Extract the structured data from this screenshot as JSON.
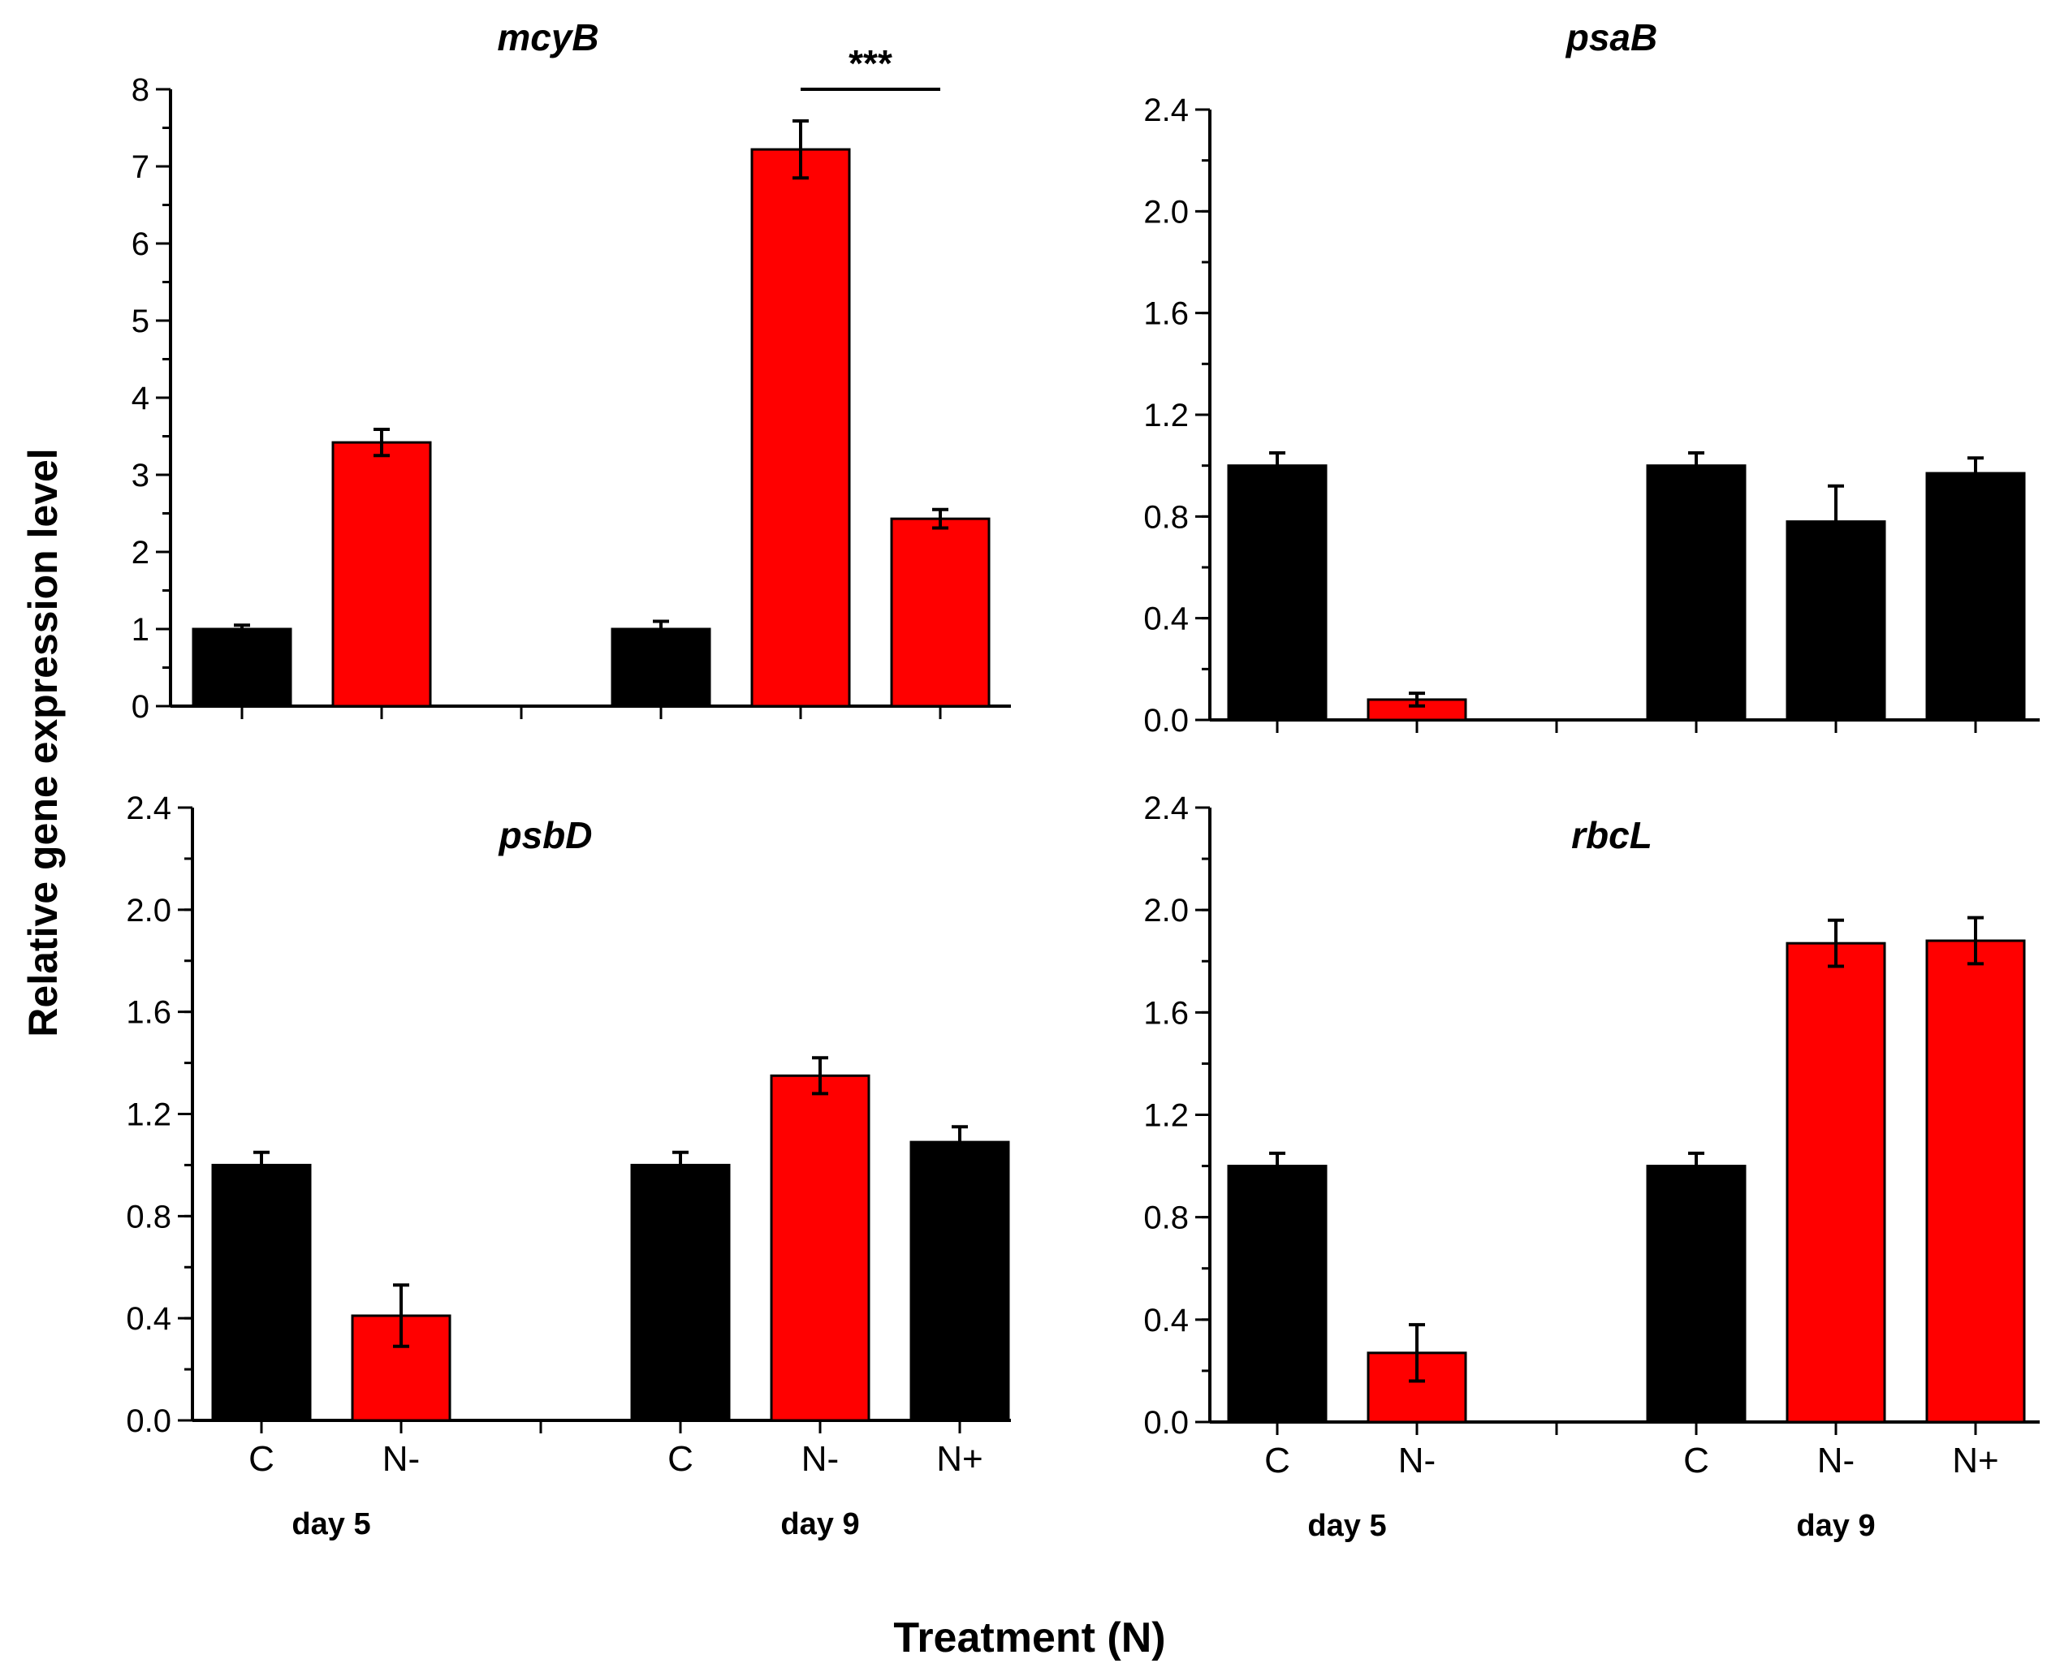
{
  "figure": {
    "ylabel": "Relative gene expression level",
    "xlabel": "Treatment (N)"
  },
  "colors": {
    "control": "#000000",
    "nitrogen": "#ff0000",
    "axis": "#000000"
  },
  "chart_data": [
    {
      "id": "mcyB",
      "type": "bar",
      "title": "mcyB",
      "ylim": [
        0,
        8
      ],
      "yticks": [
        "0",
        "1",
        "2",
        "3",
        "4",
        "5",
        "6",
        "7",
        "8"
      ],
      "yticks_num": [
        0,
        1,
        2,
        3,
        4,
        5,
        6,
        7,
        8
      ],
      "minor_step": 0.5,
      "categories": [
        "C",
        "N-",
        "",
        "C",
        "N-",
        "N+"
      ],
      "values": [
        1.0,
        3.42,
        null,
        1.0,
        7.22,
        2.43
      ],
      "errors": [
        0.05,
        0.17,
        null,
        0.1,
        0.37,
        0.12
      ],
      "bar_colors": [
        "#000000",
        "#ff0000",
        null,
        "#000000",
        "#ff0000",
        "#ff0000"
      ],
      "show_category_labels": false,
      "groups": [],
      "significance": {
        "label": "***",
        "from_index": 4,
        "to_index": 5,
        "y": 8.0
      }
    },
    {
      "id": "psaB",
      "type": "bar",
      "title": "psaB",
      "ylim": [
        0,
        2.4
      ],
      "yticks": [
        "0.0",
        "0.4",
        "0.8",
        "1.2",
        "1.6",
        "2.0",
        "2.4"
      ],
      "yticks_num": [
        0,
        0.4,
        0.8,
        1.2,
        1.6,
        2.0,
        2.4
      ],
      "minor_step": 0.2,
      "categories": [
        "C",
        "N-",
        "",
        "C",
        "N-",
        "N+"
      ],
      "values": [
        1.0,
        0.08,
        null,
        1.0,
        0.78,
        0.97
      ],
      "errors": [
        0.05,
        0.025,
        null,
        0.05,
        0.14,
        0.06
      ],
      "bar_colors": [
        "#000000",
        "#ff0000",
        null,
        "#000000",
        "#000000",
        "#000000"
      ],
      "show_category_labels": false,
      "groups": []
    },
    {
      "id": "psbD",
      "type": "bar",
      "title": "psbD",
      "ylim": [
        0,
        2.4
      ],
      "yticks": [
        "0.0",
        "0.4",
        "0.8",
        "1.2",
        "1.6",
        "2.0",
        "2.4"
      ],
      "yticks_num": [
        0,
        0.4,
        0.8,
        1.2,
        1.6,
        2.0,
        2.4
      ],
      "minor_step": 0.2,
      "categories": [
        "C",
        "N-",
        "",
        "C",
        "N-",
        "N+"
      ],
      "values": [
        1.0,
        0.41,
        null,
        1.0,
        1.35,
        1.09
      ],
      "errors": [
        0.05,
        0.12,
        null,
        0.05,
        0.07,
        0.06
      ],
      "bar_colors": [
        "#000000",
        "#ff0000",
        null,
        "#000000",
        "#ff0000",
        "#000000"
      ],
      "show_category_labels": true,
      "groups": [
        {
          "label": "day 5",
          "from_index": 0,
          "to_index": 1
        },
        {
          "label": "day 9",
          "from_index": 3,
          "to_index": 5
        }
      ]
    },
    {
      "id": "rbcL",
      "type": "bar",
      "title": "rbcL",
      "ylim": [
        0,
        2.4
      ],
      "yticks": [
        "0.0",
        "0.4",
        "0.8",
        "1.2",
        "1.6",
        "2.0",
        "2.4"
      ],
      "yticks_num": [
        0,
        0.4,
        0.8,
        1.2,
        1.6,
        2.0,
        2.4
      ],
      "minor_step": 0.2,
      "categories": [
        "C",
        "N-",
        "",
        "C",
        "N-",
        "N+"
      ],
      "values": [
        1.0,
        0.27,
        null,
        1.0,
        1.87,
        1.88
      ],
      "errors": [
        0.05,
        0.11,
        null,
        0.05,
        0.09,
        0.09
      ],
      "bar_colors": [
        "#000000",
        "#ff0000",
        null,
        "#000000",
        "#ff0000",
        "#ff0000"
      ],
      "show_category_labels": true,
      "groups": [
        {
          "label": "day 5",
          "from_index": 0,
          "to_index": 1
        },
        {
          "label": "day 9",
          "from_index": 3,
          "to_index": 5
        }
      ]
    }
  ]
}
